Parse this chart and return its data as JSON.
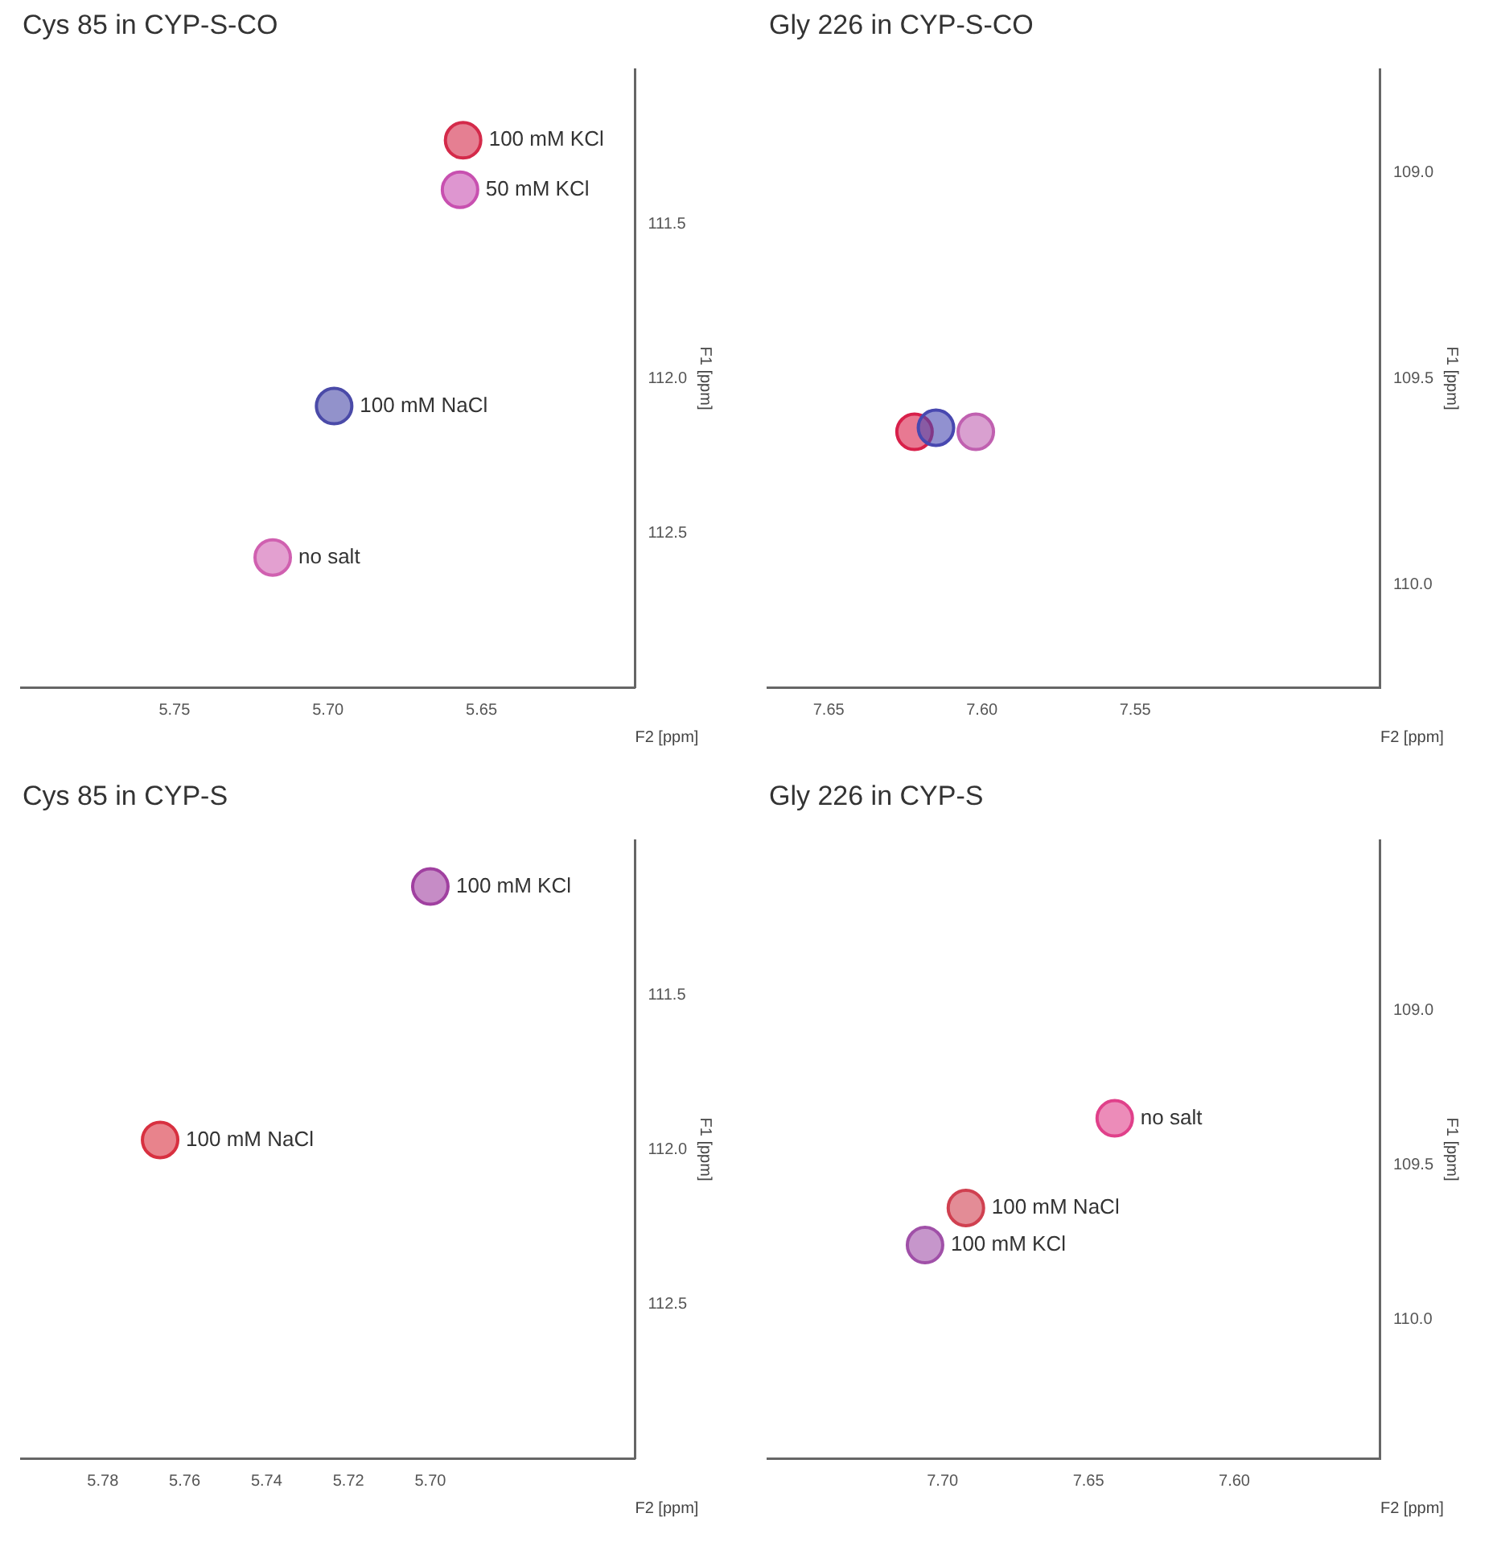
{
  "chart_data": [
    {
      "type": "scatter",
      "title": "Cys 85 in CYP-S-CO",
      "xlabel": "F2 [ppm]",
      "ylabel": "F1 [ppm]",
      "marker": "circle",
      "xlim": [
        5.8,
        5.6
      ],
      "xticks": [
        5.75,
        {
          "value": 5.7,
          "label": "5.70"
        },
        5.65
      ],
      "ylim": [
        113.0,
        111.0
      ],
      "yticks": [
        111.5,
        {
          "value": 112.0,
          "label": "112.0"
        },
        112.5
      ],
      "series": [
        {
          "name": "100 mM KCl",
          "color": "#d42a4a",
          "x": [
            5.656
          ],
          "values": [
            111.23
          ]
        },
        {
          "name": "50 mM KCl",
          "color": "#c850b0",
          "x": [
            5.657
          ],
          "values": [
            111.39
          ]
        },
        {
          "name": "100 mM NaCl",
          "color": "#4a4aa8",
          "x": [
            5.698
          ],
          "values": [
            112.09
          ]
        },
        {
          "name": "no salt",
          "color": "#d060b0",
          "x": [
            5.718
          ],
          "values": [
            112.58
          ]
        }
      ]
    },
    {
      "type": "scatter",
      "title": "Gly 226 in CYP-S-CO",
      "xlabel": "F2 [ppm]",
      "ylabel": "F1 [ppm]",
      "marker": "circle",
      "xlim": [
        7.67,
        7.47
      ],
      "xticks": [
        7.65,
        {
          "value": 7.6,
          "label": "7.60"
        },
        7.55
      ],
      "ylim": [
        110.25,
        108.75
      ],
      "yticks": [
        {
          "value": 109.0,
          "label": "109.0"
        },
        109.5,
        {
          "value": 110.0,
          "label": "110.0"
        }
      ],
      "series": [
        {
          "color": "#4848b0",
          "x": [
            7.615
          ],
          "values": [
            109.62
          ]
        },
        {
          "color": "#d8204a",
          "x": [
            7.622
          ],
          "values": [
            109.63
          ]
        },
        {
          "color": "#c060b0",
          "x": [
            7.602
          ],
          "values": [
            109.63
          ]
        }
      ]
    },
    {
      "type": "scatter",
      "title": "Cys 85 in CYP-S",
      "xlabel": "F2 [ppm]",
      "ylabel": "F1 [ppm]",
      "marker": "circle",
      "xlim": [
        5.8,
        5.65
      ],
      "xticks": [
        5.78,
        5.76,
        5.74,
        5.72,
        {
          "value": 5.7,
          "label": "5.70"
        }
      ],
      "ylim": [
        113.0,
        111.0
      ],
      "yticks": [
        111.5,
        {
          "value": 112.0,
          "label": "112.0"
        },
        112.5
      ],
      "series": [
        {
          "name": "100 mM KCl",
          "color": "#a040a0",
          "x": [
            5.7
          ],
          "values": [
            111.15
          ]
        },
        {
          "name": "100 mM NaCl",
          "color": "#d83040",
          "x": [
            5.766
          ],
          "values": [
            111.97
          ]
        }
      ]
    },
    {
      "type": "scatter",
      "title": "Gly 226 in CYP-S",
      "xlabel": "F2 [ppm]",
      "ylabel": "F1 [ppm]",
      "marker": "circle",
      "xlim": [
        7.76,
        7.55
      ],
      "xticks": [
        {
          "value": 7.7,
          "label": "7.70"
        },
        7.65,
        {
          "value": 7.6,
          "label": "7.60"
        }
      ],
      "ylim": [
        110.45,
        108.45
      ],
      "yticks": [
        {
          "value": 109.0,
          "label": "109.0"
        },
        109.5,
        {
          "value": 110.0,
          "label": "110.0"
        }
      ],
      "series": [
        {
          "name": "no salt",
          "color": "#e0408a",
          "x": [
            7.641
          ],
          "values": [
            109.35
          ]
        },
        {
          "name": "100 mM NaCl",
          "color": "#d04050",
          "x": [
            7.692
          ],
          "values": [
            109.64
          ]
        },
        {
          "name": "100 mM KCl",
          "color": "#a050a8",
          "x": [
            7.706
          ],
          "values": [
            109.76
          ]
        }
      ]
    }
  ]
}
